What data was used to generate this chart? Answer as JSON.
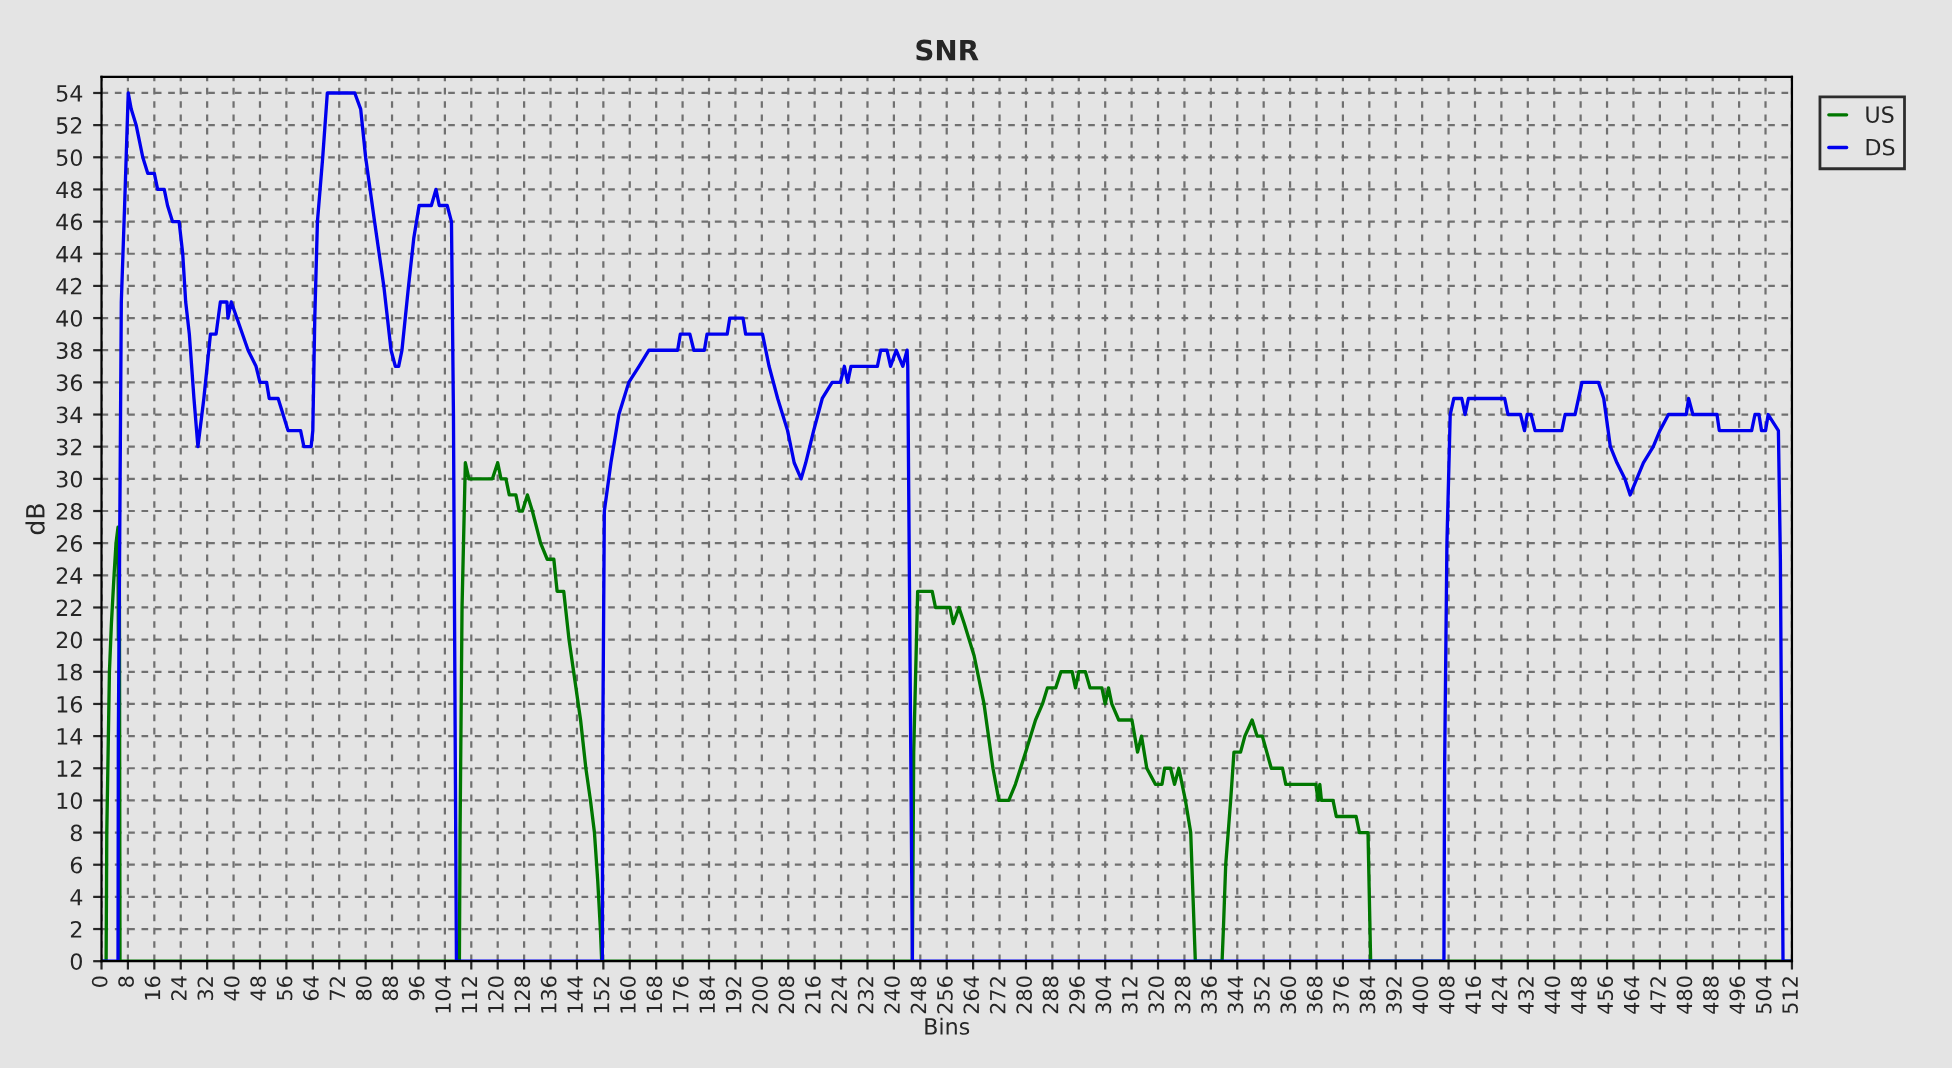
{
  "chart_data": {
    "type": "line",
    "title": "SNR",
    "xlabel": "Bins",
    "ylabel": "dB",
    "xlim": [
      0,
      512
    ],
    "xticks": [
      0,
      8,
      16,
      24,
      32,
      40,
      48,
      56,
      64,
      72,
      80,
      88,
      96,
      104,
      112,
      120,
      128,
      136,
      144,
      152,
      160,
      168,
      176,
      184,
      192,
      200,
      208,
      216,
      224,
      232,
      240,
      248,
      256,
      264,
      272,
      280,
      288,
      296,
      304,
      312,
      320,
      328,
      336,
      344,
      352,
      360,
      368,
      376,
      384,
      392,
      400,
      408,
      416,
      424,
      432,
      440,
      448,
      456,
      464,
      472,
      480,
      488,
      496,
      504,
      512
    ],
    "ylim": [
      0,
      55
    ],
    "yticks": [
      0,
      2,
      4,
      6,
      8,
      10,
      12,
      14,
      16,
      18,
      20,
      22,
      24,
      26,
      28,
      30,
      32,
      34,
      36,
      38,
      40,
      42,
      44,
      46,
      48,
      50,
      52,
      54
    ],
    "grid": true,
    "legend": "top right",
    "series": [
      {
        "name": "US",
        "color": "#007700",
        "x": [
          0,
          1.4,
          1.6,
          2.4,
          3.0,
          3.8,
          4.4,
          5.0,
          5.1,
          5.4,
          5.6,
          108.4,
          108.6,
          109.2,
          110.2,
          111.3,
          118.4,
          120,
          121,
          122.5,
          123.5,
          125.5,
          126.5,
          127.5,
          129,
          130.5,
          133,
          135,
          137,
          138,
          140,
          141.6,
          143,
          145.1,
          146.7,
          148.1,
          149.3,
          150.3,
          151.1,
          151.5,
          245.6,
          246,
          247.2,
          251.6,
          252.6,
          257,
          258,
          259.7,
          261.3,
          264.3,
          267.3,
          270,
          271.8,
          274.8,
          276.8,
          279.9,
          282.9,
          285,
          286.5,
          289,
          290.6,
          294,
          295,
          296,
          298,
          299.4,
          303,
          304,
          305,
          306,
          308.1,
          312.1,
          313.8,
          315,
          316.6,
          319.2,
          321.2,
          322,
          323.8,
          325,
          326.3,
          328.3,
          329.9,
          331.3,
          339.4,
          339.8,
          340.5,
          342,
          343,
          345,
          346.3,
          348.5,
          350,
          351.6,
          354.3,
          357.7,
          358.7,
          367.8,
          368.5,
          369,
          369.5,
          373,
          374,
          380,
          381,
          383.6,
          384.4,
          512
        ],
        "values": [
          0,
          0,
          8,
          18,
          21,
          24,
          26,
          27,
          20,
          26,
          0,
          0,
          8,
          22,
          31,
          30,
          30,
          31,
          30,
          30,
          29,
          29,
          28,
          28,
          29,
          28,
          26,
          25,
          25,
          23,
          23,
          20,
          18,
          15,
          12,
          10,
          8,
          5,
          2,
          0,
          0,
          13,
          23,
          23,
          22,
          22,
          21,
          22,
          21,
          19,
          16,
          12,
          10,
          10,
          11,
          13,
          15,
          16,
          17,
          17,
          18,
          18,
          17,
          18,
          18,
          17,
          17,
          16,
          17,
          16,
          15,
          15,
          13,
          14,
          12,
          11,
          11,
          12,
          12,
          11,
          12,
          10,
          8,
          0,
          0,
          2,
          6,
          10,
          13,
          13,
          14,
          15,
          14,
          14,
          12,
          12,
          11,
          11,
          10,
          11,
          10,
          10,
          9,
          9,
          8,
          8,
          0,
          0
        ]
      },
      {
        "name": "DS",
        "color": "#0000ee",
        "x": [
          0,
          5,
          5.1,
          6,
          7,
          8.1,
          9,
          10.5,
          12.5,
          14,
          16,
          17,
          19,
          20,
          21.5,
          23.5,
          24.6,
          25.5,
          26.6,
          28,
          29.2,
          31,
          33,
          34.7,
          36,
          38,
          38.3,
          39.3,
          41,
          44.4,
          46.8,
          48,
          50,
          50.8,
          53.5,
          55,
          56.5,
          60.3,
          61.3,
          63.5,
          64,
          64.6,
          65.4,
          67,
          68.4,
          69.4,
          70.6,
          72.4,
          76,
          76.7,
          78.5,
          80,
          82.7,
          85.5,
          87.7,
          89,
          90,
          91,
          93,
          94.6,
          96.2,
          99.9,
          101.3,
          102.3,
          104.7,
          106,
          106.6,
          107.2,
          107.5,
          151.7,
          151.8,
          152.3,
          154.3,
          156.7,
          159.7,
          162.8,
          165.8,
          174.5,
          175.3,
          178.2,
          179.4,
          182.6,
          183.4,
          189.5,
          190.3,
          194.3,
          195.1,
          200.2,
          202.2,
          204.8,
          207.8,
          209.8,
          211.9,
          213.3,
          215.7,
          218.3,
          221.3,
          223.8,
          225,
          226,
          227,
          235,
          236,
          237.9,
          239,
          240.7,
          242.7,
          244,
          244.2,
          245.6,
          406.6,
          406.8,
          407.5,
          408.5,
          409.6,
          412,
          413,
          414,
          425,
          426,
          429.8,
          431,
          431.8,
          433,
          434.2,
          442.3,
          443.3,
          446.3,
          448.4,
          453.4,
          455,
          457,
          459,
          461.4,
          463,
          465,
          467,
          470,
          472,
          474.6,
          480,
          480.7,
          482,
          489.3,
          490,
          499.8,
          500.8,
          502,
          502.8,
          504,
          504.8,
          507.9,
          508.5,
          509.3,
          512
        ],
        "values": [
          0,
          0,
          14,
          41,
          47,
          54,
          53,
          52,
          50,
          49,
          49,
          48,
          48,
          47,
          46,
          46,
          44,
          41,
          39,
          35,
          32,
          35,
          39,
          39,
          41,
          41,
          40,
          41,
          40,
          38,
          37,
          36,
          36,
          35,
          35,
          34,
          33,
          33,
          32,
          32,
          33,
          40,
          46,
          50,
          54,
          null,
          54,
          null,
          null,
          54,
          53,
          50,
          46,
          42,
          38,
          37,
          37,
          38,
          42,
          45,
          47,
          47,
          48,
          47,
          47,
          46,
          34,
          11,
          0,
          0,
          13,
          28,
          31,
          34,
          36,
          37,
          38,
          38,
          39,
          39,
          38,
          38,
          39,
          39,
          40,
          40,
          39,
          39,
          37,
          35,
          33,
          31,
          30,
          31,
          33,
          35,
          36,
          36,
          37,
          36,
          37,
          37,
          38,
          38,
          37,
          38,
          37,
          38,
          37,
          0,
          0,
          12,
          26,
          34,
          35,
          35,
          34,
          35,
          35,
          34,
          34,
          33,
          34,
          34,
          33,
          33,
          34,
          34,
          36,
          36,
          35,
          32,
          31,
          30,
          29,
          30,
          31,
          32,
          33,
          34,
          34,
          35,
          34,
          34,
          33,
          33,
          34,
          34,
          33,
          33,
          34,
          33,
          25,
          0,
          0
        ]
      }
    ]
  }
}
